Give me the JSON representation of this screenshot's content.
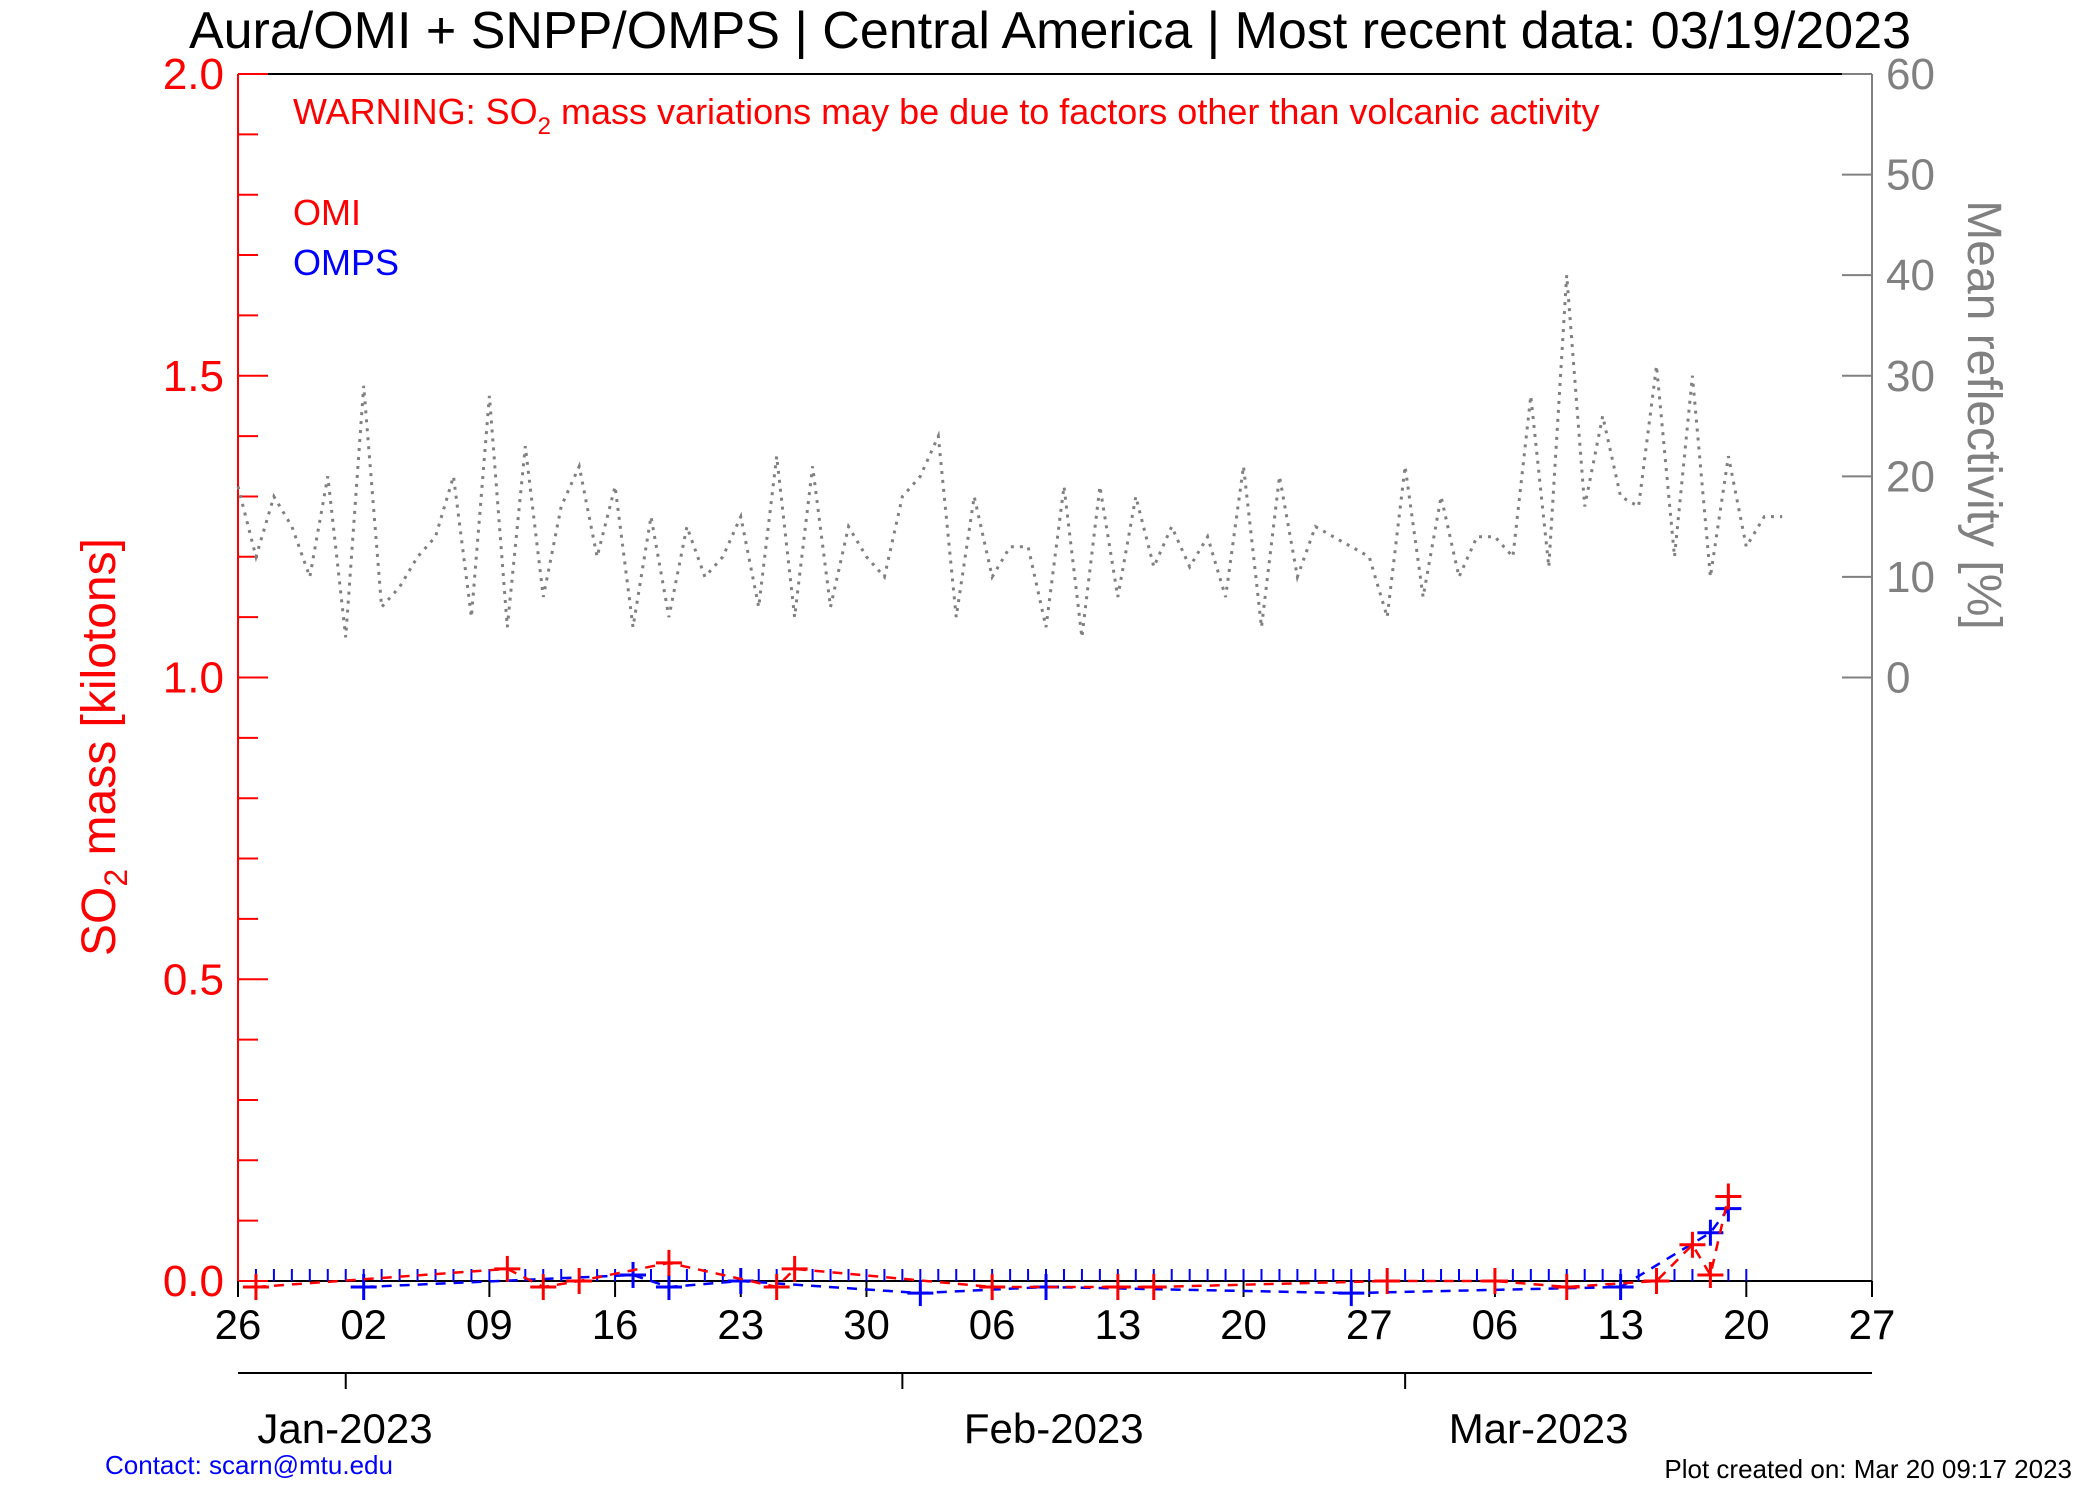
{
  "title": "Aura/OMI + SNPP/OMPS | Central America | Most recent data: 03/19/2023",
  "warning": {
    "prefix": "WARNING: SO",
    "sub": "2",
    "suffix": " mass variations may be due to factors other than volcanic activity"
  },
  "legend": [
    {
      "label": "OMI",
      "color": "#ff0000"
    },
    {
      "label": "OMPS",
      "color": "#0000ff"
    }
  ],
  "ylabel_left": {
    "prefix": "SO",
    "sub": "2",
    "suffix": " mass [kilotons]"
  },
  "ylabel_right": "Mean reflectivity [%]",
  "footer": {
    "contact": "Contact: scarn@mtu.edu",
    "created": "Plot created on: Mar 20 09:17 2023"
  },
  "colors": {
    "omi": "#ff0000",
    "omps": "#0000ff",
    "reflectivity": "#808080"
  },
  "chart_data": {
    "type": "line",
    "x_axis": {
      "start": "2022-12-26",
      "end": "2023-03-27",
      "tick_labels": [
        "26",
        "02",
        "09",
        "16",
        "23",
        "30",
        "06",
        "13",
        "20",
        "27",
        "06",
        "13",
        "20",
        "27"
      ],
      "tick_dates": [
        "2022-12-26",
        "2023-01-02",
        "2023-01-09",
        "2023-01-16",
        "2023-01-23",
        "2023-01-30",
        "2023-02-06",
        "2023-02-13",
        "2023-02-20",
        "2023-02-27",
        "2023-03-06",
        "2023-03-13",
        "2023-03-20",
        "2023-03-27"
      ],
      "months": [
        {
          "label": "Jan-2023",
          "start": "2023-01-01"
        },
        {
          "label": "Feb-2023",
          "start": "2023-02-01"
        },
        {
          "label": "Mar-2023",
          "start": "2023-03-01"
        }
      ]
    },
    "y_left": {
      "range": [
        0,
        2.0
      ],
      "ticks": [
        "0.0",
        "0.5",
        "1.0",
        "1.5",
        "2.0"
      ],
      "tick_values": [
        0,
        0.5,
        1.0,
        1.5,
        2.0
      ]
    },
    "y_right": {
      "range": [
        0,
        60
      ],
      "ticks": [
        "0",
        "10",
        "20",
        "30",
        "40",
        "50",
        "60"
      ],
      "tick_values": [
        0,
        10,
        20,
        30,
        40,
        50,
        60
      ]
    },
    "grid": false,
    "series": [
      {
        "name": "OMI",
        "axis": "left",
        "style": "dashed-plus",
        "dates": [
          "2022-12-27",
          "2023-01-10",
          "2023-01-12",
          "2023-01-14",
          "2023-01-19",
          "2023-01-25",
          "2023-01-26",
          "2023-02-06",
          "2023-02-13",
          "2023-02-15",
          "2023-02-28",
          "2023-03-06",
          "2023-03-10",
          "2023-03-15",
          "2023-03-17",
          "2023-03-18",
          "2023-03-19"
        ],
        "values": [
          -0.01,
          0.02,
          -0.01,
          0.0,
          0.03,
          -0.01,
          0.02,
          -0.01,
          -0.01,
          -0.01,
          0.0,
          0.0,
          -0.01,
          0.0,
          0.06,
          0.01,
          0.14
        ]
      },
      {
        "name": "OMPS",
        "axis": "left",
        "style": "dashed-plus",
        "dates": [
          "2023-01-02",
          "2023-01-17",
          "2023-01-19",
          "2023-01-23",
          "2023-02-02",
          "2023-02-09",
          "2023-02-26",
          "2023-03-13",
          "2023-03-18",
          "2023-03-19"
        ],
        "values": [
          -0.01,
          0.01,
          -0.01,
          0.0,
          -0.02,
          -0.01,
          -0.02,
          -0.01,
          0.08,
          0.12
        ]
      },
      {
        "name": "Mean reflectivity",
        "axis": "right",
        "style": "dotted",
        "start": "2022-12-26",
        "step_days": 1,
        "values": [
          19,
          12,
          18,
          15,
          10,
          20,
          4,
          29,
          7,
          9,
          12,
          14,
          20,
          6,
          28,
          5,
          23,
          8,
          17,
          21,
          12,
          19,
          5,
          16,
          6,
          15,
          10,
          12,
          16,
          7,
          22,
          6,
          21,
          7,
          15,
          12,
          10,
          18,
          20,
          24,
          6,
          18,
          10,
          13,
          13,
          5,
          19,
          4,
          19,
          8,
          18,
          11,
          15,
          11,
          14,
          8,
          21,
          5,
          20,
          10,
          15,
          14,
          13,
          12,
          6,
          21,
          8,
          18,
          10,
          14,
          14,
          12,
          28,
          11,
          40,
          17,
          26,
          18,
          17,
          31,
          12,
          30,
          10,
          22,
          13,
          16,
          16
        ],
        "no_legend": true
      }
    ]
  }
}
